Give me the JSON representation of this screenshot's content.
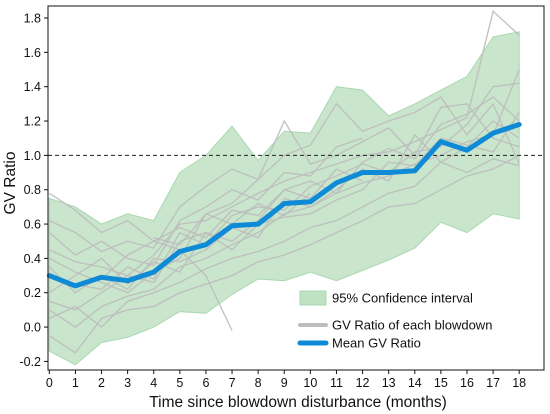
{
  "chart_data": {
    "type": "line",
    "xlabel": "Time since blowdown disturbance (months)",
    "ylabel": "GV Ratio",
    "xlim": [
      0,
      18
    ],
    "ylim": [
      -0.25,
      1.87
    ],
    "x_ticks": [
      0,
      1,
      2,
      3,
      4,
      5,
      6,
      7,
      8,
      9,
      10,
      11,
      12,
      13,
      14,
      15,
      16,
      17,
      18
    ],
    "y_ticks": [
      -0.2,
      0.0,
      0.2,
      0.4,
      0.6,
      0.8,
      1.0,
      1.2,
      1.4,
      1.6,
      1.8
    ],
    "x_tick_labels": [
      "0",
      "1",
      "2",
      "3",
      "4",
      "5",
      "6",
      "7",
      "8",
      "9",
      "10",
      "11",
      "12",
      "13",
      "14",
      "15",
      "16",
      "17",
      "18"
    ],
    "y_tick_labels": [
      "-0.2",
      "0.0",
      "0.2",
      "0.4",
      "0.6",
      "0.8",
      "1.0",
      "1.2",
      "1.4",
      "1.6",
      "1.8"
    ],
    "reference_line": {
      "y": 1.0,
      "style": "dashed",
      "color": "#222222"
    },
    "grid": false,
    "legend_position": "bottom-right",
    "legend": [
      {
        "label": "95% Confidence interval",
        "kind": "area",
        "color": "#bfe2c4"
      },
      {
        "label": "GV Ratio of each blowdown",
        "kind": "line",
        "color": "#bdbdbd"
      },
      {
        "label": "Mean GV Ratio",
        "kind": "line",
        "color": "#0e8ad6"
      }
    ],
    "series": [
      {
        "name": "Mean GV Ratio",
        "role": "mean",
        "color": "#0e8ad6",
        "x": [
          0,
          1,
          2,
          3,
          4,
          5,
          6,
          7,
          8,
          9,
          10,
          11,
          12,
          13,
          14,
          15,
          16,
          17,
          18
        ],
        "values": [
          0.3,
          0.24,
          0.29,
          0.27,
          0.32,
          0.44,
          0.48,
          0.59,
          0.6,
          0.72,
          0.73,
          0.84,
          0.9,
          0.9,
          0.91,
          1.08,
          1.03,
          1.13,
          1.18
        ]
      },
      {
        "name": "95% Confidence interval",
        "role": "ci",
        "color": "#bfe2c4",
        "x": [
          0,
          1,
          2,
          3,
          4,
          5,
          6,
          7,
          8,
          9,
          10,
          11,
          12,
          13,
          14,
          15,
          16,
          17,
          18
        ],
        "upper": [
          0.75,
          0.7,
          0.6,
          0.66,
          0.62,
          0.9,
          1.0,
          1.17,
          0.97,
          1.14,
          1.13,
          1.4,
          1.38,
          1.23,
          1.3,
          1.38,
          1.46,
          1.69,
          1.72
        ],
        "lower": [
          -0.14,
          -0.22,
          -0.09,
          -0.06,
          0.0,
          0.09,
          0.08,
          0.19,
          0.28,
          0.27,
          0.32,
          0.27,
          0.33,
          0.39,
          0.46,
          0.61,
          0.55,
          0.66,
          0.63
        ]
      },
      {
        "name": "GV Ratio of each blowdown",
        "role": "individual",
        "color": "#bdbdbd",
        "lines": [
          {
            "x": [
              0,
              1,
              2,
              3,
              4,
              5,
              6,
              7,
              8,
              9,
              10,
              11,
              12,
              13,
              14,
              15,
              16,
              17,
              18
            ],
            "values": [
              0.45,
              0.38,
              0.35,
              0.3,
              0.42,
              0.6,
              0.62,
              0.7,
              0.78,
              0.85,
              0.9,
              0.95,
              1.0,
              1.02,
              1.08,
              1.15,
              1.22,
              1.84,
              1.7
            ]
          },
          {
            "x": [
              0,
              1,
              2,
              3,
              4,
              5,
              6,
              7,
              8,
              9,
              10,
              11,
              12,
              13,
              14,
              15,
              16,
              17,
              18
            ],
            "values": [
              0.1,
              0.0,
              0.12,
              0.18,
              0.22,
              0.35,
              0.4,
              0.48,
              0.55,
              0.66,
              0.7,
              0.78,
              0.84,
              0.88,
              0.95,
              1.0,
              1.08,
              1.12,
              1.5
            ]
          },
          {
            "x": [
              0,
              1,
              2,
              3,
              4,
              5,
              6,
              7,
              8,
              9,
              10,
              11,
              12,
              13,
              14,
              15,
              16,
              17,
              18
            ],
            "values": [
              0.62,
              0.55,
              0.44,
              0.5,
              0.46,
              0.7,
              0.82,
              0.92,
              0.86,
              1.0,
              1.06,
              1.3,
              1.14,
              1.2,
              1.25,
              1.34,
              1.12,
              1.3,
              0.95
            ]
          },
          {
            "x": [
              0,
              1,
              2,
              3,
              4,
              5,
              6,
              7,
              8,
              9,
              10,
              11,
              12,
              13,
              14,
              15,
              16,
              17,
              18
            ],
            "values": [
              -0.05,
              -0.15,
              0.05,
              0.1,
              0.12,
              0.2,
              0.25,
              0.3,
              0.38,
              0.42,
              0.48,
              0.55,
              0.62,
              0.7,
              0.72,
              0.8,
              0.88,
              0.92,
              1.0
            ]
          },
          {
            "x": [
              0,
              1,
              2,
              3,
              4,
              5,
              6,
              7,
              8,
              9,
              10,
              11,
              12,
              13,
              14,
              15,
              16,
              17,
              18
            ],
            "values": [
              0.3,
              0.25,
              0.22,
              0.35,
              0.28,
              0.55,
              0.48,
              0.65,
              0.7,
              0.68,
              0.82,
              0.88,
              0.95,
              0.9,
              1.02,
              1.05,
              1.18,
              1.4,
              1.42
            ]
          },
          {
            "x": [
              0,
              1,
              2,
              3,
              4,
              5,
              6,
              7
            ],
            "values": [
              0.78,
              0.68,
              0.55,
              0.62,
              0.5,
              0.45,
              0.3,
              -0.02
            ]
          },
          {
            "x": [
              0,
              1,
              2,
              3,
              4,
              5,
              6,
              7,
              8,
              9,
              10,
              11,
              12
            ],
            "values": [
              0.2,
              0.3,
              0.4,
              0.25,
              0.38,
              0.32,
              0.55,
              0.5,
              0.62,
              0.8,
              0.75,
              0.92,
              0.85
            ]
          },
          {
            "x": [
              0,
              1,
              2,
              3,
              4,
              5,
              6,
              7,
              8,
              9,
              10,
              11,
              12,
              13,
              14,
              15,
              16,
              17,
              18
            ],
            "values": [
              0.35,
              0.2,
              0.3,
              0.22,
              0.4,
              0.38,
              0.45,
              0.58,
              0.52,
              0.75,
              0.7,
              0.8,
              0.92,
              0.85,
              1.12,
              0.96,
              1.05,
              1.2,
              1.1
            ]
          },
          {
            "x": [
              0,
              1,
              2,
              3,
              4,
              5,
              6,
              7,
              8,
              9,
              10,
              11,
              12
            ],
            "values": [
              0.55,
              0.42,
              0.5,
              0.4,
              0.36,
              0.62,
              0.7,
              0.8,
              0.74,
              0.9,
              0.88,
              1.05,
              1.1
            ]
          },
          {
            "x": [
              0,
              1,
              2,
              3,
              4,
              5,
              6,
              7,
              8,
              9,
              10,
              11,
              12,
              13,
              14,
              15,
              16,
              17,
              18
            ],
            "values": [
              0.15,
              0.1,
              0.2,
              0.3,
              0.26,
              0.5,
              0.55,
              0.45,
              0.6,
              0.64,
              0.66,
              0.74,
              0.8,
              0.96,
              0.94,
              1.1,
              1.06,
              1.02,
              1.25
            ]
          },
          {
            "x": [
              4,
              5,
              6,
              7,
              8,
              9,
              10,
              11,
              12,
              13,
              14,
              15,
              16,
              17,
              18
            ],
            "values": [
              0.52,
              0.48,
              0.66,
              0.72,
              0.86,
              1.2,
              0.95,
              1.0,
              1.08,
              1.16,
              1.0,
              1.28,
              1.3,
              1.1,
              1.05
            ]
          },
          {
            "x": [
              0,
              1,
              2,
              3,
              4,
              5,
              6,
              7,
              8,
              9,
              10,
              11,
              12,
              13,
              14,
              15,
              16,
              17,
              18
            ],
            "values": [
              0.05,
              0.12,
              0.0,
              0.15,
              0.2,
              0.26,
              0.34,
              0.4,
              0.44,
              0.5,
              0.58,
              0.62,
              0.7,
              0.78,
              0.82,
              0.96,
              0.9,
              0.98,
              0.94
            ]
          },
          {
            "x": [
              0,
              1,
              2,
              3,
              4,
              5,
              6,
              7,
              8,
              9,
              10
            ],
            "values": [
              0.4,
              0.32,
              0.26,
              0.2,
              0.32,
              0.4,
              0.66,
              0.6,
              0.72,
              0.65,
              0.78
            ]
          },
          {
            "x": [
              2,
              3,
              4,
              5,
              6,
              7,
              8,
              9,
              10,
              11,
              12,
              13,
              14,
              15,
              16,
              17,
              18
            ],
            "values": [
              0.28,
              0.42,
              0.5,
              0.58,
              0.52,
              0.68,
              0.65,
              0.8,
              0.85,
              0.78,
              0.96,
              1.04,
              0.98,
              1.18,
              1.24,
              1.34,
              1.2
            ]
          }
        ]
      }
    ]
  }
}
